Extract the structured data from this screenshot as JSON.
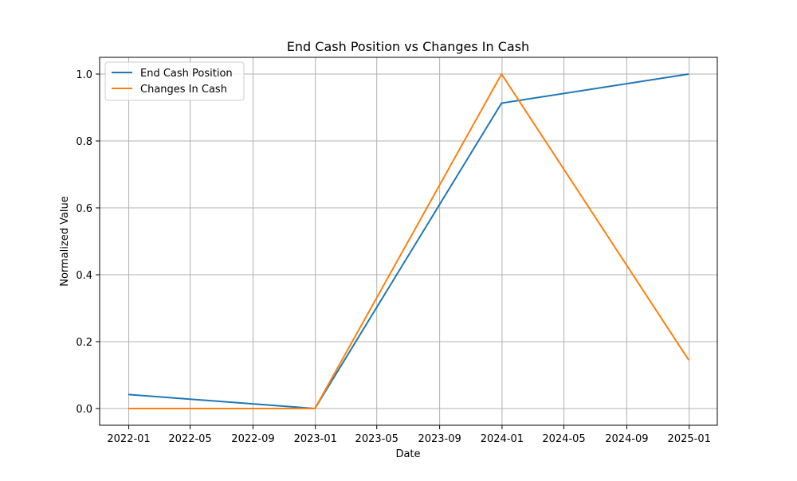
{
  "chart_data": {
    "type": "line",
    "title": "End Cash Position vs Changes In Cash",
    "xlabel": "Date",
    "ylabel": "Normalized Value",
    "x": [
      "2021-12-31",
      "2022-12-31",
      "2023-12-31",
      "2024-12-31"
    ],
    "series": [
      {
        "name": "End Cash Position",
        "color": "#1f77b4",
        "values": [
          0.042,
          0.0,
          0.913,
          1.0
        ]
      },
      {
        "name": "Changes In Cash",
        "color": "#ff7f0e",
        "values": [
          0.0,
          0.0,
          1.0,
          0.145
        ]
      }
    ],
    "xlim": [
      "2021-11-05",
      "2025-02-25"
    ],
    "ylim": [
      -0.05,
      1.05
    ],
    "xticks": [
      "2022-01",
      "2022-05",
      "2022-09",
      "2023-01",
      "2023-05",
      "2023-09",
      "2024-01",
      "2024-05",
      "2024-09",
      "2025-01"
    ],
    "yticks": [
      0.0,
      0.2,
      0.4,
      0.6,
      0.8,
      1.0
    ],
    "ytick_labels": [
      "0.0",
      "0.2",
      "0.4",
      "0.6",
      "0.8",
      "1.0"
    ],
    "grid": true,
    "legend_position": "top-left"
  }
}
